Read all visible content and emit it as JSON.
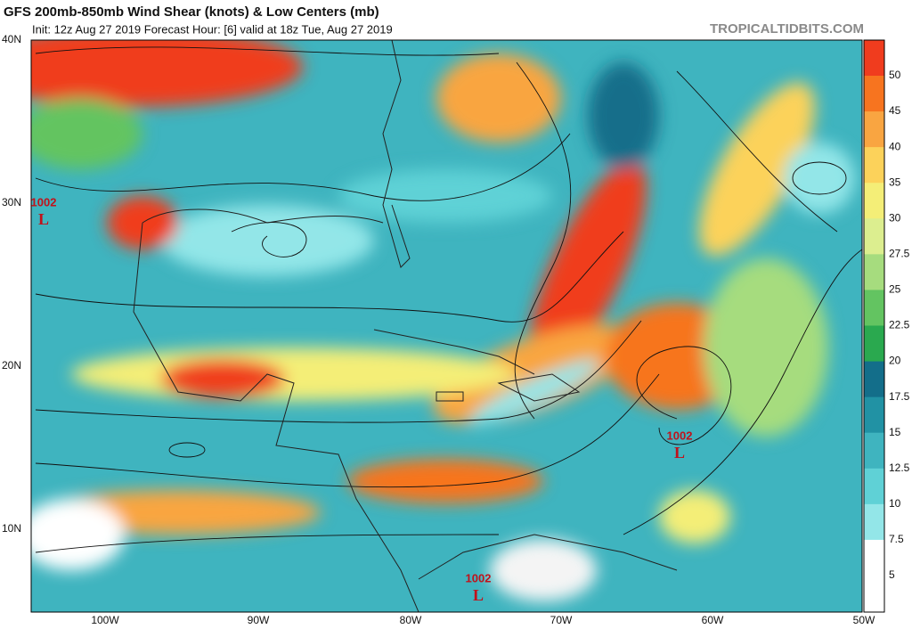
{
  "header": {
    "title": "GFS 200mb-850mb Wind Shear (knots) & Low Centers (mb)",
    "subtitle": "Init: 12z Aug 27 2019   Forecast Hour: [6]   valid at 18z Tue, Aug 27 2019",
    "watermark": "TROPICALTIDBITS.COM"
  },
  "latitude_labels": [
    "40N",
    "30N",
    "20N",
    "10N"
  ],
  "longitude_labels": [
    "100W",
    "90W",
    "80W",
    "70W",
    "60W",
    "50W"
  ],
  "colorbar_labels": [
    50,
    45,
    40,
    35,
    30,
    27.5,
    25,
    22.5,
    20,
    17.5,
    15,
    12.5,
    10,
    7.5,
    5
  ],
  "low_centers": [
    {
      "pressure": "1002",
      "symbol": "L"
    },
    {
      "pressure": "1002",
      "symbol": "L"
    },
    {
      "pressure": "1002",
      "symbol": "L"
    }
  ]
}
